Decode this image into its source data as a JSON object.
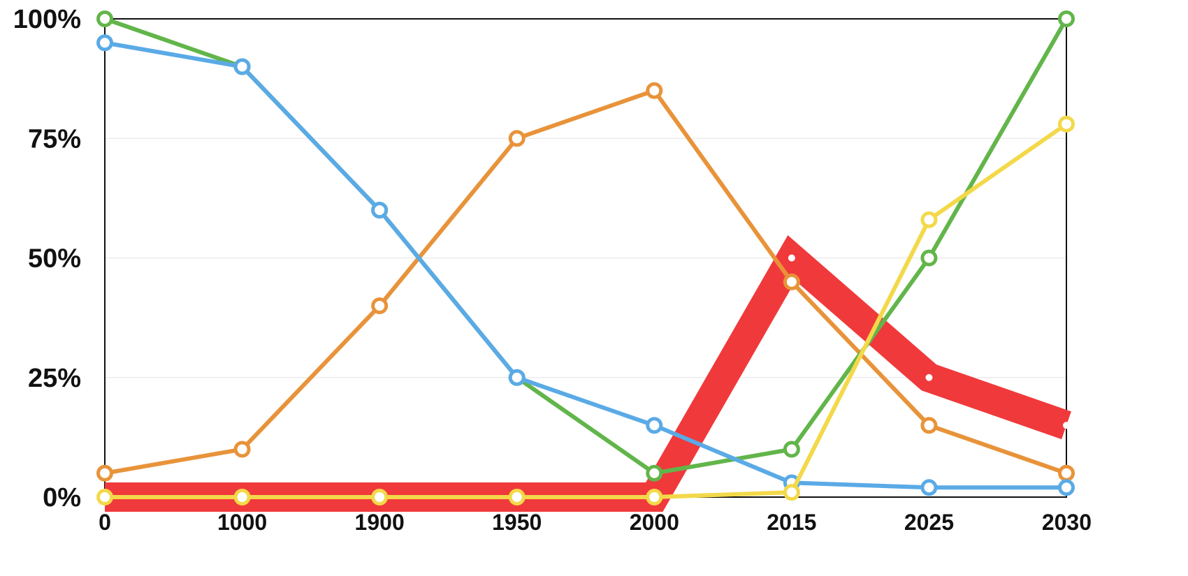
{
  "chart_data": {
    "type": "line",
    "categories": [
      "0",
      "1000",
      "1900",
      "1950",
      "2000",
      "2015",
      "2025",
      "2030"
    ],
    "y_ticks": [
      "0%",
      "25%",
      "50%",
      "75%",
      "100%"
    ],
    "ylim": [
      0,
      100
    ],
    "grid": true,
    "legend": "none",
    "series": [
      {
        "color": "#f0393b",
        "style": "thick-band",
        "values": [
          0,
          0,
          0,
          0,
          0,
          50,
          25,
          15
        ]
      },
      {
        "color": "#e8933a",
        "style": "line",
        "values": [
          5,
          10,
          40,
          75,
          85,
          45,
          15,
          5
        ]
      },
      {
        "color": "#62b54a",
        "style": "line",
        "values": [
          100,
          90,
          60,
          25,
          5,
          10,
          50,
          100
        ]
      },
      {
        "color": "#5aaae6",
        "style": "line",
        "values": [
          95,
          90,
          60,
          25,
          15,
          3,
          2,
          2
        ]
      },
      {
        "color": "#f3d94a",
        "style": "line",
        "values": [
          0,
          0,
          0,
          0,
          0,
          1,
          58,
          78
        ]
      }
    ]
  }
}
